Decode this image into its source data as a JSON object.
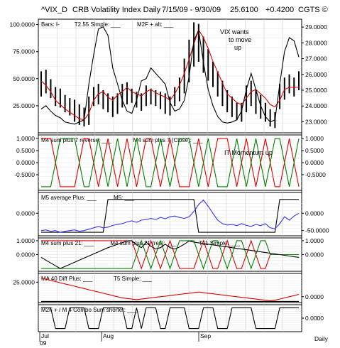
{
  "header": {
    "symbol": "^VIX_D",
    "name": "CRB Volatility Index Daily",
    "date_range": "7/15/09 - 9/30/09",
    "last": "25.6100",
    "change": "+0.4200",
    "copyright": "CGTS ©"
  },
  "footer": {
    "months": [
      "Jul",
      "Aug",
      "Sep"
    ],
    "year": "09",
    "period": "Daily"
  },
  "colors": {
    "black": "#000000",
    "red": "#e00000",
    "green": "#008000",
    "blue": "#3333ff",
    "grid": "#cfcfcf"
  },
  "chart_data": [
    {
      "type": "line",
      "panel": "price",
      "legend": [
        "Bars: I-",
        "T2.55 Simple: ___",
        "M2F + alt: ___"
      ],
      "annotation": "VIX wants to move up",
      "left_ticks": [
        "100.0000",
        "75.0000",
        "50.0000",
        "25.0000"
      ],
      "left_tick_values": [
        100,
        75,
        50,
        25
      ],
      "left_ylim": [
        0,
        105
      ],
      "right_ticks": [
        "29.0000",
        "28.0000",
        "27.0000",
        "26.0000",
        "25.0000",
        "24.0000",
        "23.0000"
      ],
      "right_tick_values": [
        29,
        28,
        27,
        26,
        25,
        24,
        23
      ],
      "right_ylim": [
        22.3,
        29.5
      ],
      "n_bars": 55,
      "bars": [
        [
          24.6,
          26.2
        ],
        [
          24.8,
          26.3
        ],
        [
          24.5,
          25.7
        ],
        [
          24.0,
          25.2
        ],
        [
          23.9,
          25.1
        ],
        [
          23.6,
          24.7
        ],
        [
          23.4,
          24.5
        ],
        [
          23.0,
          24.4
        ],
        [
          22.8,
          24.1
        ],
        [
          22.7,
          23.9
        ],
        [
          22.8,
          24.6
        ],
        [
          24.0,
          25.2
        ],
        [
          24.1,
          25.4
        ],
        [
          23.8,
          25.0
        ],
        [
          23.6,
          24.8
        ],
        [
          23.3,
          24.6
        ],
        [
          23.5,
          24.8
        ],
        [
          23.9,
          25.4
        ],
        [
          24.1,
          25.5
        ],
        [
          24.2,
          25.1
        ],
        [
          23.9,
          24.9
        ],
        [
          23.7,
          24.8
        ],
        [
          24.0,
          25.3
        ],
        [
          24.1,
          25.1
        ],
        [
          24.0,
          25.0
        ],
        [
          23.8,
          24.9
        ],
        [
          23.5,
          24.8
        ],
        [
          23.4,
          24.6
        ],
        [
          24.0,
          25.2
        ],
        [
          24.3,
          25.8
        ],
        [
          24.8,
          27.0
        ],
        [
          25.5,
          28.2
        ],
        [
          26.5,
          29.3
        ],
        [
          26.8,
          29.2
        ],
        [
          26.1,
          28.4
        ],
        [
          25.6,
          27.6
        ],
        [
          25.2,
          26.8
        ],
        [
          24.6,
          26.2
        ],
        [
          24.0,
          25.6
        ],
        [
          23.6,
          25.0
        ],
        [
          23.3,
          24.6
        ],
        [
          23.1,
          24.2
        ],
        [
          23.0,
          24.2
        ],
        [
          23.6,
          25.3
        ],
        [
          24.0,
          25.6
        ],
        [
          23.5,
          25.0
        ],
        [
          23.2,
          24.7
        ],
        [
          23.0,
          24.2
        ],
        [
          22.7,
          23.8
        ],
        [
          22.6,
          23.6
        ],
        [
          23.8,
          25.4
        ],
        [
          24.4,
          25.8
        ],
        [
          24.8,
          26.0
        ],
        [
          24.6,
          25.8
        ],
        [
          25.0,
          26.2
        ]
      ],
      "series": [
        {
          "name": "T2.55 Simple",
          "color": "red",
          "axis": "left",
          "values": [
            48,
            44,
            38,
            30,
            26,
            22,
            19,
            16,
            13,
            12,
            18,
            30,
            36,
            38,
            33,
            30,
            35,
            38,
            42,
            38,
            36,
            34,
            38,
            40,
            37,
            35,
            33,
            30,
            36,
            44,
            55,
            68,
            82,
            95,
            88,
            78,
            66,
            56,
            46,
            36,
            32,
            28,
            26,
            32,
            38,
            40,
            36,
            32,
            26,
            24,
            30,
            40,
            42,
            42,
            42
          ]
        },
        {
          "name": "M2F + alt",
          "color": "black",
          "axis": "left",
          "values": [
            22,
            25,
            20,
            16,
            14,
            10,
            9,
            8,
            10,
            12,
            45,
            72,
            96,
            98,
            90,
            60,
            45,
            30,
            20,
            18,
            30,
            48,
            50,
            60,
            55,
            50,
            45,
            28,
            20,
            22,
            30,
            52,
            85,
            95,
            65,
            40,
            25,
            15,
            10,
            9,
            10,
            12,
            20,
            40,
            55,
            40,
            25,
            15,
            10,
            12,
            45,
            75,
            88,
            85,
            70
          ]
        }
      ]
    },
    {
      "type": "line",
      "panel": "m4",
      "legend": [
        "M4 sum plus 7 reverse: ___",
        "M4 sum plus 7 (Close): ___"
      ],
      "annotation": "IT Momentum up",
      "left_ticks": [
        "1.0000",
        "0.5000",
        "0.0000",
        "-0.5000"
      ],
      "left_tick_values": [
        1,
        0.5,
        0,
        -0.5
      ],
      "right_ticks": [
        "1.0000",
        "0.5000",
        "0.0000",
        "-0.5000"
      ],
      "right_tick_values": [
        1,
        0.5,
        0,
        -0.5
      ],
      "ylim": [
        -1.15,
        1.15
      ],
      "series": [
        {
          "name": "M4 sum plus 7 reverse",
          "color": "red",
          "values": [
            1,
            1,
            1,
            0,
            -1,
            -1,
            -1,
            -1,
            0,
            1,
            1,
            0,
            -1,
            0,
            1,
            0,
            -1,
            0,
            1,
            0,
            -1,
            0,
            1,
            1,
            0,
            -1,
            0,
            1,
            0,
            -1,
            -1,
            -1,
            0,
            1,
            0,
            -1,
            0,
            1,
            1,
            1,
            0,
            -1,
            0,
            1,
            0,
            -1,
            0,
            1,
            0,
            -1,
            -1,
            0,
            1,
            0,
            -1
          ]
        },
        {
          "name": "M4 sum plus 7 (Close)",
          "color": "green",
          "values": [
            -1,
            -1,
            -1,
            0,
            1,
            1,
            1,
            1,
            0,
            -1,
            -1,
            0,
            1,
            0,
            -1,
            0,
            1,
            0,
            -1,
            0,
            1,
            0,
            -1,
            -1,
            0,
            1,
            0,
            -1,
            0,
            1,
            1,
            1,
            0,
            -1,
            0,
            1,
            0,
            -1,
            -1,
            -1,
            0,
            1,
            0,
            -1,
            0,
            1,
            0,
            -1,
            0,
            1,
            1,
            0,
            -1,
            0,
            1
          ]
        }
      ]
    },
    {
      "type": "line",
      "panel": "m5",
      "legend": [
        "M5 average Plus: ___",
        "M5: ___"
      ],
      "left_ticks": [
        "0.0000"
      ],
      "left_tick_values": [
        0
      ],
      "right_ticks": [
        "0.0000",
        "-50.0000"
      ],
      "right_tick_values": [
        0,
        -50
      ],
      "ylim": [
        -65,
        60
      ],
      "series": [
        {
          "name": "M5 average Plus",
          "color": "black",
          "values": [
            -55,
            -55,
            -55,
            -55,
            -55,
            -55,
            -55,
            -55,
            -55,
            -55,
            -55,
            -55,
            -55,
            -55,
            40,
            40,
            40,
            40,
            40,
            40,
            40,
            40,
            40,
            40,
            40,
            40,
            40,
            40,
            40,
            40,
            40,
            40,
            40,
            -55,
            -55,
            -55,
            -55,
            -55,
            -55,
            -55,
            -55,
            -55,
            -55,
            -55,
            -55,
            -55,
            -55,
            -55,
            -55,
            -55,
            40,
            40,
            40,
            40,
            40
          ]
        },
        {
          "name": "M5",
          "color": "blue",
          "values": [
            -50,
            -48,
            -52,
            -50,
            -55,
            -52,
            -50,
            -48,
            -52,
            -50,
            -46,
            -42,
            -38,
            -42,
            -40,
            -35,
            -32,
            -30,
            -25,
            -22,
            -26,
            -20,
            -18,
            -15,
            -18,
            -12,
            -16,
            -10,
            -8,
            -12,
            -15,
            -10,
            5,
            25,
            38,
            20,
            0,
            -20,
            -30,
            -34,
            -32,
            -36,
            -30,
            -35,
            -38,
            -32,
            -36,
            -30,
            -42,
            -45,
            -30,
            -10,
            -20,
            -8,
            0
          ]
        }
      ]
    },
    {
      "type": "line",
      "panel": "m4b",
      "legend": [
        "M4 sum plus 21: ___",
        "M4 sum plus 21 (rev): ___",
        "T11 Simple: ___"
      ],
      "left_ticks": [
        "1.0000",
        "0.0000"
      ],
      "left_tick_values": [
        1,
        0
      ],
      "right_ticks": [
        "1.0000",
        "0.0000"
      ],
      "right_tick_values": [
        1,
        0
      ],
      "ylim": [
        -1.2,
        1.2
      ],
      "series": [
        {
          "name": "M4 sum plus 21",
          "color": "red",
          "values": [
            1,
            1,
            1,
            1,
            1,
            1,
            1,
            1,
            1,
            1,
            1,
            1,
            1,
            1,
            1,
            1,
            1,
            1,
            1,
            1,
            0,
            -1,
            0,
            1,
            0,
            -1,
            0,
            1,
            0,
            -1,
            -1,
            -1,
            -1,
            0,
            1,
            0,
            -1,
            -1,
            0,
            1,
            0,
            -1,
            -1,
            0,
            1,
            0,
            -1,
            -1,
            0,
            0,
            0,
            0,
            0,
            0,
            0
          ]
        },
        {
          "name": "M4 sum plus 21 (rev)",
          "color": "green",
          "values": [
            -1,
            -1,
            -1,
            -1,
            -1,
            -1,
            -1,
            -1,
            -1,
            -1,
            -1,
            -1,
            -1,
            -1,
            -1,
            -1,
            -1,
            -1,
            -1,
            -1,
            0,
            1,
            0,
            -1,
            0,
            1,
            0,
            -1,
            0,
            1,
            1,
            1,
            1,
            0,
            -1,
            0,
            1,
            1,
            0,
            -1,
            0,
            1,
            1,
            0,
            -1,
            0,
            1,
            1,
            0,
            0,
            0,
            0,
            0,
            0,
            0
          ]
        },
        {
          "name": "T11 Simple",
          "color": "black",
          "values": [
            -0.2,
            -0.4,
            -0.6,
            -0.8,
            -1,
            -0.85,
            -0.7,
            -0.55,
            -0.4,
            -0.25,
            -0.1,
            0.05,
            0.2,
            0.35,
            0.5,
            0.62,
            0.74,
            0.86,
            0.98,
            1.0,
            0.7,
            0.5,
            0.9,
            0.6,
            0.4,
            0.5,
            0.75,
            0.5,
            0.4,
            0.55,
            0.75,
            0.98,
            0.9,
            0.85,
            0.8,
            0.75,
            0.7,
            0.65,
            0.6,
            0.55,
            0.5,
            0.45,
            0.4,
            0.35,
            0.3,
            0.25,
            0.2,
            0.15,
            0.1,
            0.05,
            0.0,
            -0.05,
            -0.1,
            -0.15,
            -0.2
          ]
        }
      ]
    },
    {
      "type": "line",
      "panel": "ma40",
      "legend": [
        "MA 40 Diff Plus: ___",
        "T5 Simple: ___"
      ],
      "left_ticks": [
        "25.0000"
      ],
      "left_tick_values": [
        25
      ],
      "right_ticks": [
        "0.0000"
      ],
      "right_tick_values": [
        0
      ],
      "ylim": [
        -10,
        40
      ],
      "series": [
        {
          "name": "MA 40 Diff Plus",
          "color": "black",
          "values": [
            -8,
            -8,
            -8,
            -8,
            -8,
            -8,
            -8,
            -8,
            -8,
            -8,
            -8,
            -8,
            -8,
            -8,
            -8,
            -8,
            -8,
            -8,
            -8,
            -8,
            -8,
            -8,
            -8,
            -8,
            -8,
            -8,
            -8,
            -8,
            -8,
            -8,
            -8,
            -8,
            -8,
            -8,
            -8,
            -8,
            -8,
            -8,
            -8,
            -8,
            -8,
            -8,
            -8,
            -8,
            -8,
            -8,
            -8,
            -8,
            -8,
            -8,
            -8,
            -8,
            -8,
            -8,
            -8
          ]
        },
        {
          "name": "T5 Simple",
          "color": "red",
          "values": [
            32,
            30,
            28,
            26,
            24,
            22,
            20,
            18,
            16,
            14,
            12,
            10,
            8,
            6,
            4,
            2,
            0,
            -2,
            -3,
            -4,
            -5,
            -4,
            -3,
            -2,
            -1,
            0,
            1,
            2,
            3,
            4,
            5,
            6,
            7,
            8,
            7,
            6,
            5,
            4,
            3,
            2,
            1,
            0,
            -1,
            -2,
            -3,
            -4,
            -5,
            -6,
            -7,
            -6,
            -4,
            -2,
            0,
            2,
            4
          ]
        }
      ]
    },
    {
      "type": "line",
      "panel": "m2f",
      "legend": [
        "M2F + / M 4 Combo Sum shorter: ___"
      ],
      "left_ticks": [],
      "left_tick_values": [],
      "right_ticks": [
        "0.0000"
      ],
      "right_tick_values": [
        0
      ],
      "ylim": [
        -1.3,
        1.3
      ],
      "series": [
        {
          "name": "M2F + / M 4 Combo Sum shorter",
          "color": "black",
          "values": [
            1,
            1,
            1,
            -1,
            -1,
            -1,
            1,
            1,
            1,
            1,
            -1,
            -1,
            -1,
            1,
            1,
            1,
            1,
            1,
            -1,
            -1,
            1,
            -1,
            1,
            1,
            1,
            -1,
            -1,
            1,
            1,
            1,
            1,
            -1,
            -1,
            -1,
            1,
            1,
            1,
            -1,
            -1,
            -1,
            1,
            1,
            1,
            1,
            1,
            -1,
            -1,
            -1,
            -1,
            -1,
            1,
            1,
            1,
            1,
            1
          ]
        }
      ]
    }
  ]
}
